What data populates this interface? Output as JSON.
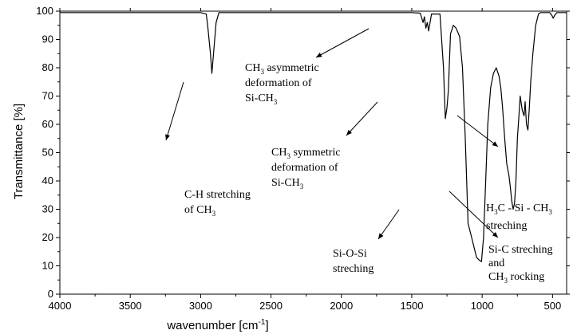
{
  "chart_data": {
    "type": "line",
    "xlabel": "wavenumber [cm",
    "xlabel_sup": "-1",
    "xlabel_end": "]",
    "ylabel": "Transmittance [%]",
    "xlim": [
      4000,
      400
    ],
    "ylim": [
      0,
      100
    ],
    "x_reversed": true,
    "grid": false,
    "x_ticks": [
      4000,
      3500,
      3000,
      2500,
      2000,
      1500,
      1000,
      500
    ],
    "y_ticks": [
      0,
      10,
      20,
      30,
      40,
      50,
      60,
      70,
      80,
      90,
      100
    ],
    "series": [
      {
        "color": "#000000",
        "x": [
          4000,
          3000,
          2960,
          2950,
          2930,
          2920,
          2890,
          2870,
          2800,
          2500,
          2000,
          1500,
          1440,
          1420,
          1410,
          1400,
          1390,
          1380,
          1370,
          1360,
          1340,
          1300,
          1275,
          1262,
          1250,
          1240,
          1225,
          1205,
          1185,
          1160,
          1140,
          1120,
          1100,
          1080,
          1060,
          1040,
          1020,
          1005,
          990,
          975,
          960,
          940,
          920,
          900,
          880,
          868,
          855,
          840,
          825,
          810,
          800,
          790,
          780,
          770,
          760,
          750,
          740,
          730,
          715,
          702,
          695,
          685,
          675,
          665,
          655,
          640,
          620,
          600,
          585,
          570,
          540,
          520,
          505,
          495,
          485,
          470,
          400
        ],
        "y": [
          99.5,
          99.5,
          99,
          95,
          85,
          78,
          96,
          99.5,
          99.5,
          99.5,
          99.5,
          99.5,
          99.3,
          96,
          98,
          94,
          96,
          93,
          96,
          99,
          99,
          99,
          80,
          62,
          66,
          72,
          92,
          95,
          94,
          91,
          80,
          55,
          25,
          21,
          17,
          13,
          12,
          11.5,
          20,
          40,
          60,
          73,
          78,
          80,
          77,
          73,
          66,
          55,
          46,
          42,
          38,
          33,
          30,
          32,
          40,
          55,
          62,
          70,
          65,
          63,
          68,
          60,
          58,
          66,
          75,
          85,
          95,
          99,
          99.5,
          99.5,
          99.5,
          99.5,
          98.5,
          97.5,
          98.5,
          99.5,
          99.5
        ]
      }
    ],
    "annotations": [
      {
        "lines": [
          "C-H stretching",
          "of CH|3"
        ],
        "target": "C-H peak near 2950 cm-1"
      },
      {
        "lines": [
          "CH|3 asymmetric",
          "deformation of",
          "Si-CH|3"
        ],
        "target": "band near 1400 cm-1"
      },
      {
        "lines": [
          "CH|3 symmetric",
          "deformation of",
          "Si-CH|3"
        ],
        "target": "peak near 1260 cm-1"
      },
      {
        "lines": [
          "Si-O-Si",
          "streching"
        ],
        "target": "broad band near 1000-1100 cm-1"
      },
      {
        "lines": [
          "H|3C - Si - CH|3",
          "streching"
        ],
        "target": "band near 700 cm-1"
      },
      {
        "lines": [
          "Si-C streching",
          "and",
          "CH|3 rocking"
        ],
        "target": "peak near 800 cm-1"
      }
    ]
  }
}
